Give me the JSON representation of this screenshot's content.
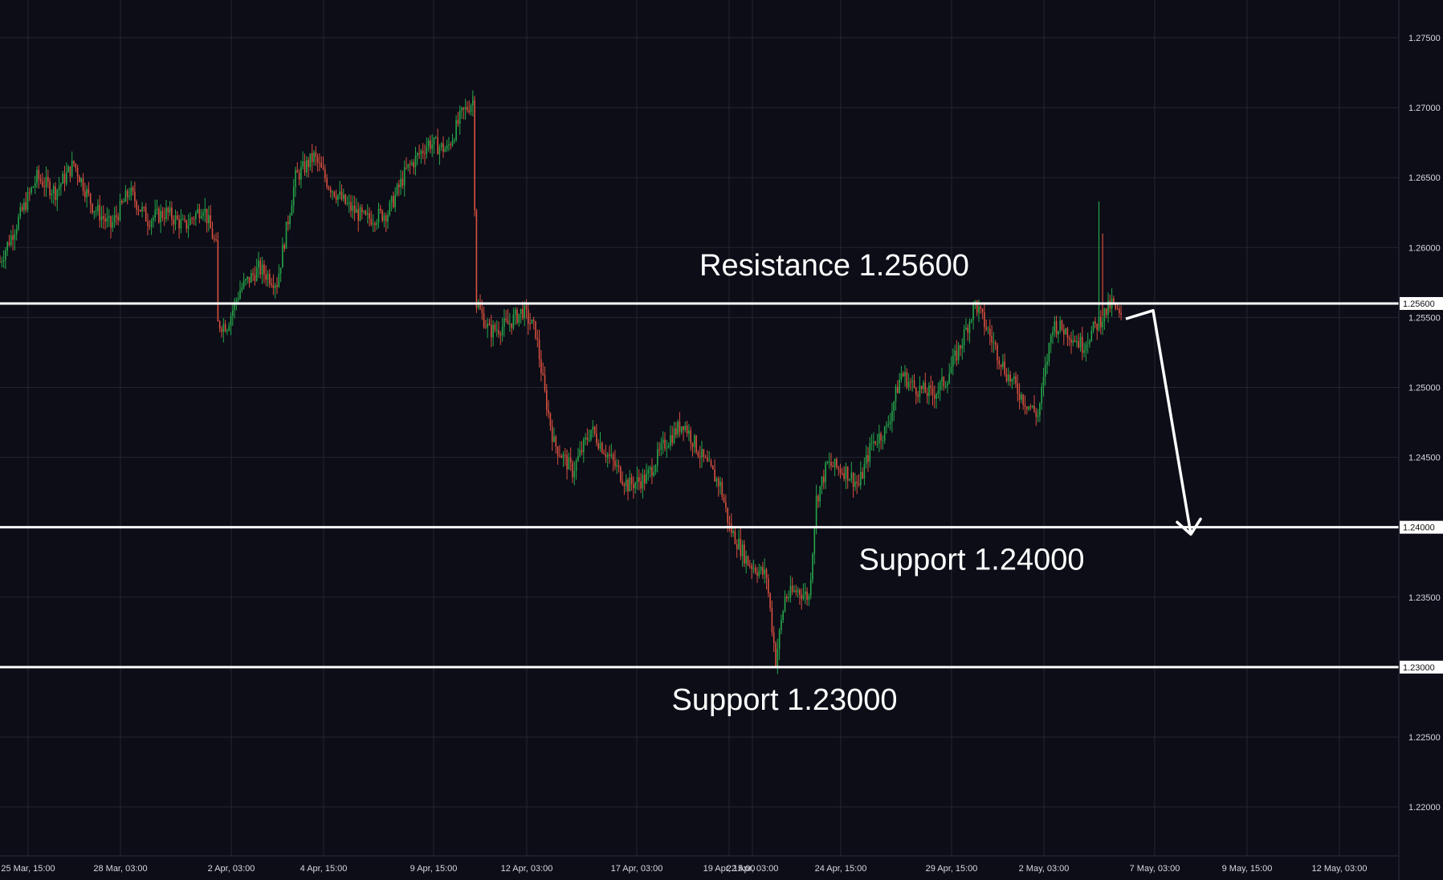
{
  "chart_data": {
    "type": "candlestick",
    "colors": {
      "background": "#0c0d17",
      "grid": "#23252f",
      "up": "#26a64a",
      "down": "#d9503f",
      "level_line": "#ffffff",
      "axis_text": "#d6d8e0"
    },
    "y_axis": {
      "position": "right",
      "ylim": [
        1.2165,
        1.2777
      ],
      "ticks": [
        "1.27500",
        "1.27000",
        "1.26500",
        "1.26000",
        "1.25500",
        "1.25000",
        "1.24500",
        "1.23500",
        "1.22500",
        "1.22000"
      ]
    },
    "x_axis": {
      "ticks": [
        "25 Mar, 15:00",
        "28 Mar, 03:00",
        "2 Apr, 03:00",
        "4 Apr, 15:00",
        "9 Apr, 15:00",
        "12 Apr, 03:00",
        "17 Apr, 03:00",
        "19 Apr, 15:00",
        "22 Apr, 03:00",
        "24 Apr, 15:00",
        "29 Apr, 15:00",
        "2 May, 03:00",
        "7 May, 03:00",
        "9 May, 15:00",
        "12 May, 03:00"
      ]
    },
    "levels": [
      {
        "value": 1.256,
        "badge": "1.25600",
        "label": "Resistance 1.25600",
        "label_position": "above"
      },
      {
        "value": 1.24,
        "badge": "1.24000",
        "label": "Support 1.24000",
        "label_position": "below"
      },
      {
        "value": 1.23,
        "badge": "1.23000",
        "label": "Support 1.23000",
        "label_position": "below"
      }
    ],
    "projection": {
      "style": "arrow",
      "from_price": 1.2549,
      "via_price": 1.2555,
      "to_price": 1.2395,
      "direction": "down"
    },
    "price_path": [
      [
        0,
        1.259
      ],
      [
        10,
        1.262
      ],
      [
        20,
        1.265
      ],
      [
        30,
        1.264
      ],
      [
        40,
        1.266
      ],
      [
        50,
        1.263
      ],
      [
        60,
        1.2615
      ],
      [
        70,
        1.264
      ],
      [
        80,
        1.262
      ],
      [
        90,
        1.2625
      ],
      [
        100,
        1.2615
      ],
      [
        110,
        1.263
      ],
      [
        117,
        1.26
      ],
      [
        118,
        1.2545
      ],
      [
        123,
        1.2545
      ],
      [
        130,
        1.257
      ],
      [
        140,
        1.2585
      ],
      [
        150,
        1.2575
      ],
      [
        160,
        1.265
      ],
      [
        170,
        1.2665
      ],
      [
        178,
        1.2645
      ],
      [
        188,
        1.263
      ],
      [
        198,
        1.262
      ],
      [
        210,
        1.2625
      ],
      [
        220,
        1.2655
      ],
      [
        232,
        1.2675
      ],
      [
        242,
        1.267
      ],
      [
        250,
        1.2695
      ],
      [
        256,
        1.2705
      ],
      [
        258,
        1.256
      ],
      [
        265,
        1.254
      ],
      [
        275,
        1.2545
      ],
      [
        283,
        1.2555
      ],
      [
        290,
        1.254
      ],
      [
        295,
        1.2495
      ],
      [
        300,
        1.246
      ],
      [
        310,
        1.244
      ],
      [
        320,
        1.247
      ],
      [
        330,
        1.245
      ],
      [
        340,
        1.243
      ],
      [
        350,
        1.2435
      ],
      [
        360,
        1.246
      ],
      [
        370,
        1.2475
      ],
      [
        380,
        1.245
      ],
      [
        390,
        1.243
      ],
      [
        395,
        1.24
      ],
      [
        405,
        1.2375
      ],
      [
        415,
        1.2365
      ],
      [
        420,
        1.2305
      ],
      [
        425,
        1.235
      ],
      [
        432,
        1.2355
      ],
      [
        438,
        1.235
      ],
      [
        442,
        1.242
      ],
      [
        448,
        1.2445
      ],
      [
        458,
        1.244
      ],
      [
        465,
        1.243
      ],
      [
        472,
        1.246
      ],
      [
        480,
        1.247
      ],
      [
        488,
        1.251
      ],
      [
        495,
        1.25
      ],
      [
        505,
        1.2495
      ],
      [
        512,
        1.2505
      ],
      [
        520,
        1.253
      ],
      [
        528,
        1.256
      ],
      [
        535,
        1.254
      ],
      [
        545,
        1.251
      ],
      [
        555,
        1.249
      ],
      [
        562,
        1.248
      ],
      [
        570,
        1.2545
      ],
      [
        578,
        1.254
      ],
      [
        586,
        1.253
      ],
      [
        594,
        1.2545
      ],
      [
        602,
        1.256
      ],
      [
        607,
        1.2548
      ]
    ],
    "price_path_x_range": [
      0,
      880
    ],
    "candle_seed": 7
  }
}
